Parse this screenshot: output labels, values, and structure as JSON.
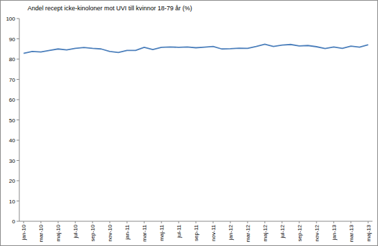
{
  "chart_data": {
    "type": "line",
    "title": "Andel recept icke-kinoloner mot UVI till kvinnor 18-79 år (%)",
    "categories": [
      "jan-10",
      null,
      "mar-10",
      null,
      "maj-10",
      null,
      "jul-10",
      null,
      "sep-10",
      null,
      "nov-10",
      null,
      "jan-11",
      null,
      "mar-11",
      null,
      "maj-11",
      null,
      "jul-11",
      null,
      "sep-11",
      null,
      "nov-11",
      null,
      "jan-12",
      null,
      "mar-12",
      null,
      "maj-12",
      null,
      "jul-12",
      null,
      "sep-12",
      null,
      "nov-12",
      null,
      "jan-13",
      null,
      "mar-13",
      null,
      "maj-13"
    ],
    "values": [
      82.8,
      83.8,
      83.5,
      84.3,
      85.0,
      84.5,
      85.3,
      85.7,
      85.3,
      85.0,
      83.8,
      83.3,
      84.3,
      84.3,
      85.8,
      84.7,
      85.8,
      86.0,
      85.8,
      86.0,
      85.6,
      85.9,
      86.2,
      85.0,
      85.1,
      85.4,
      85.3,
      86.2,
      87.3,
      86.2,
      86.9,
      87.2,
      86.5,
      86.7,
      86.1,
      85.2,
      86.0,
      85.3,
      86.4,
      85.9,
      87.1
    ],
    "color": "#4a7ebb",
    "ylim": [
      0,
      100
    ],
    "yticks": [
      0,
      10,
      20,
      30,
      40,
      50,
      60,
      70,
      80,
      90,
      100
    ],
    "grid": false
  }
}
